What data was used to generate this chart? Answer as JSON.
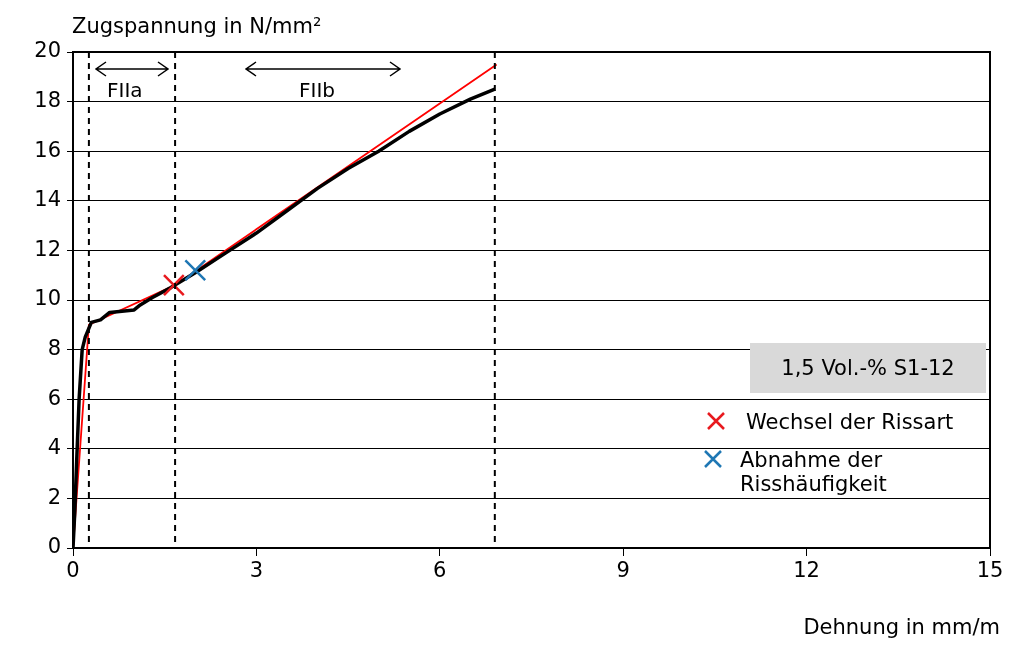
{
  "chart_data": {
    "type": "line",
    "xlabel": "Dehnung in mm/m",
    "ylabel": "Zugspannung in N/mm²",
    "xlim": [
      0,
      15
    ],
    "xticks": [
      0,
      3,
      6,
      9,
      12,
      15
    ],
    "ylim": [
      0,
      20
    ],
    "yticks": [
      0,
      2,
      4,
      6,
      8,
      10,
      12,
      14,
      16,
      18,
      20
    ],
    "grid": "y",
    "legend": "bottom right",
    "marker": "none",
    "line_style": "solid",
    "series": [
      {
        "color": "#000000",
        "x": [
          0,
          0.03,
          0.06,
          0.1,
          0.15,
          0.2,
          0.3,
          0.45,
          0.6,
          1.0,
          1.1,
          1.3,
          1.6,
          2,
          2.5,
          3,
          3.5,
          4,
          4.5,
          5,
          5.5,
          6,
          6.5,
          6.9
        ],
        "values": [
          0,
          1.5,
          3.5,
          6,
          8,
          8.5,
          9.1,
          9.2,
          9.5,
          9.6,
          9.8,
          10.1,
          10.5,
          11.1,
          11.9,
          12.7,
          13.6,
          14.5,
          15.3,
          16.0,
          16.8,
          17.5,
          18.1,
          18.5
        ]
      },
      {
        "color": "#ff0000",
        "x": [
          0,
          0.26,
          1.67,
          6.93
        ],
        "values": [
          0,
          9.0,
          10.6,
          19.5
        ]
      },
      {
        "type": "scatter",
        "marker": "cross",
        "name": "Wechsel der Rissart",
        "color": "#e8191e",
        "x": [
          1.65
        ],
        "values": [
          10.6
        ]
      },
      {
        "type": "scatter",
        "marker": "cross",
        "name": "Abnahme der Risshäufigkeit",
        "color": "#1f77b4",
        "x": [
          2.0
        ],
        "values": [
          11.2
        ]
      }
    ],
    "ref_lines": [
      {
        "axis": "x",
        "value": 0.26,
        "color": "#000000",
        "line_style": "dashed"
      },
      {
        "axis": "x",
        "value": 1.67,
        "color": "#000000",
        "line_style": "dashed"
      },
      {
        "axis": "x",
        "value": 6.9,
        "color": "#000000",
        "line_style": "dashed"
      }
    ],
    "annotations": [
      "FIIa",
      "FIIb",
      "1,5 Vol.-% S1-12"
    ]
  }
}
